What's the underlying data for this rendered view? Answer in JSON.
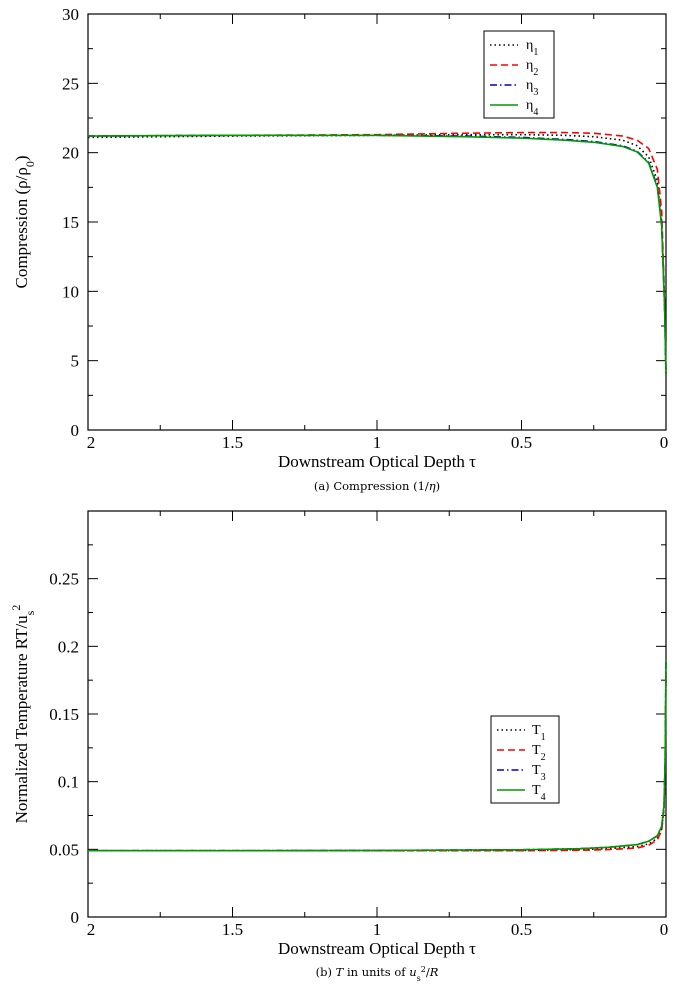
{
  "chart_data": [
    {
      "type": "line",
      "xlabel": "Downstream Optical Depth τ",
      "ylabel": "Compression (ρ/ρ0)",
      "caption": "(a) Compression (1/η)",
      "xlim": [
        2,
        0
      ],
      "ylim": [
        0,
        30
      ],
      "xticks": [
        "2",
        "1.5",
        "1",
        "0.5",
        "0"
      ],
      "yticks": [
        "0",
        "5",
        "10",
        "15",
        "20",
        "25",
        "30"
      ],
      "legend_position": "top-right",
      "series": [
        {
          "name": "η1",
          "color": "#000000",
          "dash": "dotted",
          "x": [
            2,
            1.5,
            1.0,
            0.7,
            0.5,
            0.35,
            0.25,
            0.15,
            0.1,
            0.06,
            0.03,
            0.015,
            0.005,
            0.0
          ],
          "y": [
            21.1,
            21.2,
            21.25,
            21.3,
            21.3,
            21.25,
            21.15,
            20.9,
            20.5,
            19.7,
            18.0,
            15.0,
            9.0,
            4.0
          ]
        },
        {
          "name": "η2",
          "color": "#ff0000",
          "dash": "dashed",
          "x": [
            2,
            1.5,
            1.0,
            0.7,
            0.5,
            0.35,
            0.25,
            0.15,
            0.1,
            0.06,
            0.03,
            0.015,
            0.005,
            0.0
          ],
          "y": [
            21.2,
            21.25,
            21.3,
            21.4,
            21.45,
            21.45,
            21.4,
            21.2,
            20.9,
            20.3,
            18.8,
            15.8,
            9.5,
            4.0
          ]
        },
        {
          "name": "η3",
          "color": "#0000cc",
          "dash": "dashdot",
          "x": [
            2,
            1.5,
            1.0,
            0.7,
            0.5,
            0.35,
            0.25,
            0.15,
            0.1,
            0.06,
            0.03,
            0.015,
            0.005,
            0.0
          ],
          "y": [
            21.2,
            21.25,
            21.25,
            21.2,
            21.1,
            20.95,
            20.8,
            20.5,
            20.1,
            19.3,
            17.6,
            14.8,
            9.0,
            4.0
          ]
        },
        {
          "name": "η4",
          "color": "#009900",
          "dash": "solid",
          "x": [
            2,
            1.5,
            1.0,
            0.7,
            0.5,
            0.35,
            0.25,
            0.15,
            0.1,
            0.06,
            0.03,
            0.015,
            0.005,
            0.0
          ],
          "y": [
            21.2,
            21.25,
            21.25,
            21.15,
            21.05,
            20.9,
            20.75,
            20.45,
            20.05,
            19.25,
            17.5,
            14.7,
            9.0,
            4.0
          ]
        }
      ]
    },
    {
      "type": "line",
      "xlabel": "Downstream Optical Depth τ",
      "ylabel": "Normalized Temperature RT/us2",
      "caption": "(b) T in units of us2/R",
      "xlim": [
        2,
        0
      ],
      "ylim": [
        0,
        0.3
      ],
      "xticks": [
        "2",
        "1.5",
        "1",
        "0.5",
        "0"
      ],
      "yticks": [
        "0",
        "0.05",
        "0.1",
        "0.15",
        "0.2",
        "0.25"
      ],
      "legend_position": "right",
      "series": [
        {
          "name": "T1",
          "color": "#000000",
          "dash": "dotted",
          "x": [
            2,
            1.5,
            1.0,
            0.5,
            0.3,
            0.2,
            0.1,
            0.06,
            0.03,
            0.015,
            0.007,
            0.003,
            0.0
          ],
          "y": [
            0.049,
            0.049,
            0.049,
            0.0492,
            0.0498,
            0.0505,
            0.052,
            0.054,
            0.058,
            0.065,
            0.08,
            0.11,
            0.18
          ]
        },
        {
          "name": "T2",
          "color": "#ff0000",
          "dash": "dashed",
          "x": [
            2,
            1.5,
            1.0,
            0.5,
            0.3,
            0.2,
            0.1,
            0.06,
            0.03,
            0.015,
            0.007,
            0.003,
            0.0
          ],
          "y": [
            0.049,
            0.049,
            0.049,
            0.049,
            0.0493,
            0.0498,
            0.051,
            0.053,
            0.057,
            0.064,
            0.079,
            0.11,
            0.18
          ]
        },
        {
          "name": "T3",
          "color": "#0000cc",
          "dash": "dashdot",
          "x": [
            2,
            1.5,
            1.0,
            0.5,
            0.3,
            0.2,
            0.1,
            0.06,
            0.03,
            0.015,
            0.007,
            0.003,
            0.0
          ],
          "y": [
            0.049,
            0.049,
            0.0492,
            0.0497,
            0.0505,
            0.0515,
            0.0535,
            0.056,
            0.06,
            0.067,
            0.082,
            0.115,
            0.19
          ]
        },
        {
          "name": "T4",
          "color": "#009900",
          "dash": "solid",
          "x": [
            2,
            1.5,
            1.0,
            0.5,
            0.3,
            0.2,
            0.1,
            0.06,
            0.03,
            0.015,
            0.007,
            0.003,
            0.0
          ],
          "y": [
            0.049,
            0.049,
            0.0492,
            0.0497,
            0.0505,
            0.0515,
            0.0535,
            0.056,
            0.06,
            0.067,
            0.082,
            0.115,
            0.19
          ]
        }
      ]
    }
  ]
}
